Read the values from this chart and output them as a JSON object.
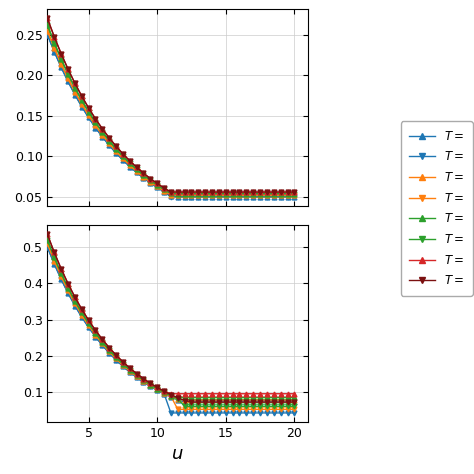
{
  "xlabel": "$u$",
  "xlim": [
    2,
    21
  ],
  "ylim_top": [
    null,
    null
  ],
  "ylim_bot": [
    null,
    null
  ],
  "xticks": [
    5,
    10,
    15,
    20
  ],
  "legend_labels": [
    "$T = $",
    "$T = $",
    "$T = $",
    "$T = $",
    "$T = $",
    "$T = $",
    "$T = $",
    "$T = $"
  ],
  "colors": [
    "#1f77b4",
    "#1f77b4",
    "#ff7f0e",
    "#ff7f0e",
    "#2ca02c",
    "#2ca02c",
    "#d62728",
    "#7b1010"
  ],
  "markers": [
    "^",
    "v",
    "^",
    "v",
    "^",
    "v",
    "^",
    "v"
  ],
  "markersize": 3.5,
  "linewidth": 1.0,
  "shade_color": "#90ee90",
  "shade_alpha": 0.5,
  "figsize": [
    4.74,
    4.74
  ],
  "dpi": 100
}
